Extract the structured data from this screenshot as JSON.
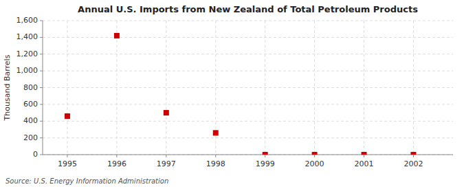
{
  "chart_data": {
    "type": "scatter",
    "title": "Annual U.S. Imports from New Zealand of Total Petroleum Products",
    "ylabel": "Thousand Barrels",
    "source": "Source: U.S. Energy Information Administration",
    "x": [
      1995,
      1996,
      1997,
      1998,
      1999,
      2000,
      2001,
      2002
    ],
    "values": [
      460,
      1420,
      500,
      260,
      0,
      0,
      0,
      0
    ],
    "xlim": [
      1994.5,
      2002.8
    ],
    "ylim": [
      0,
      1600
    ],
    "xticks": [
      1995,
      1996,
      1997,
      1998,
      1999,
      2000,
      2001,
      2002
    ],
    "yticks": [
      0,
      200,
      400,
      600,
      800,
      {
        "value": 1000,
        "label": "1,000"
      },
      {
        "value": 1200,
        "label": "1,200"
      },
      {
        "value": 1400,
        "label": "1,400"
      },
      {
        "value": 1600,
        "label": "1,600"
      }
    ],
    "color": "#cc0000",
    "marker": "square",
    "grid": true
  }
}
